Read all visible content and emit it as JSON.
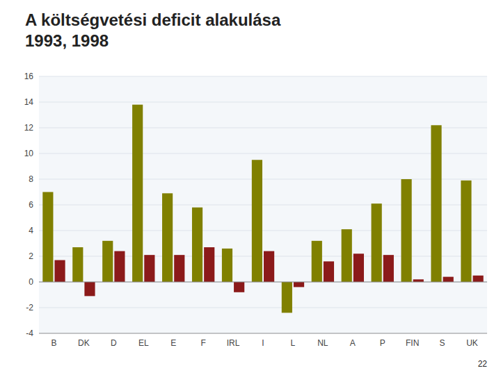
{
  "chart_data": {
    "type": "bar",
    "title": "A költségvetési deficit alakulása\n1993, 1998",
    "categories": [
      "B",
      "DK",
      "D",
      "EL",
      "E",
      "F",
      "IRL",
      "I",
      "L",
      "NL",
      "A",
      "P",
      "FIN",
      "S",
      "UK"
    ],
    "series": [
      {
        "color": "#808000",
        "values": [
          7.0,
          2.7,
          3.2,
          13.8,
          6.9,
          5.8,
          2.6,
          9.5,
          -2.4,
          3.2,
          4.1,
          6.1,
          8.0,
          12.2,
          7.9
        ]
      },
      {
        "color": "#8B1A1A",
        "values": [
          1.7,
          -1.1,
          2.4,
          2.1,
          2.1,
          2.7,
          -0.8,
          2.4,
          -0.4,
          1.6,
          2.2,
          2.1,
          0.2,
          0.4,
          0.5
        ]
      }
    ],
    "ylim": [
      -4,
      16
    ],
    "yticks": [
      -4,
      -2,
      0,
      2,
      4,
      6,
      8,
      10,
      12,
      14,
      16
    ],
    "grid": true,
    "annotations": [
      "22"
    ]
  }
}
